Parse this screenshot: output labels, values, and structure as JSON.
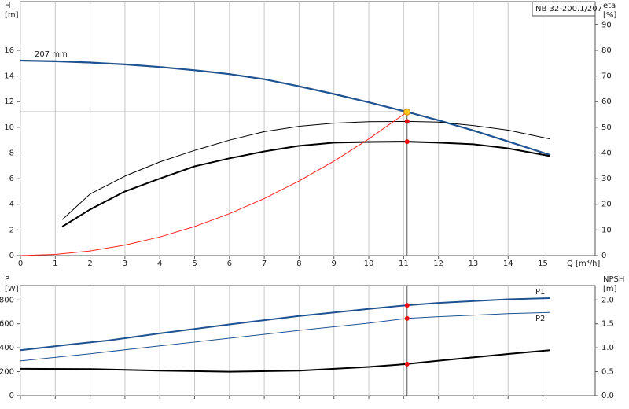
{
  "chart_data": [
    {
      "type": "line",
      "title": "NB 32-200.1/207",
      "xlabel": "Q [m³/h]",
      "ylabel": [
        "H",
        "[m]"
      ],
      "y2label": [
        "eta",
        "[%]"
      ],
      "xlim": [
        0,
        16.5
      ],
      "xticks": [
        0,
        1,
        2,
        3,
        4,
        5,
        6,
        7,
        8,
        9,
        10,
        11,
        12,
        13,
        14,
        15
      ],
      "ylim": [
        0,
        19.8
      ],
      "yticks": [
        0,
        2,
        4,
        6,
        8,
        10,
        12,
        14,
        16
      ],
      "y2lim": [
        0,
        99
      ],
      "y2ticks": [
        0,
        10,
        20,
        30,
        40,
        50,
        60,
        70,
        80,
        90
      ],
      "grid": "x",
      "xtick_labels": true,
      "duty_point": {
        "x": 11.1,
        "y": 11.2
      },
      "series": [
        {
          "name": "207 mm",
          "color": "#1f5290",
          "line_width": 2.2,
          "axis": "y",
          "x": [
            0,
            1,
            2,
            3,
            4,
            5,
            6,
            7,
            8,
            9,
            10,
            11.1,
            12,
            13,
            14,
            15.2
          ],
          "values": [
            15.2,
            15.15,
            15.05,
            14.9,
            14.7,
            14.45,
            14.15,
            13.75,
            13.2,
            12.6,
            11.95,
            11.2,
            10.55,
            9.75,
            8.9,
            7.85
          ]
        },
        {
          "color": "#000000",
          "line_width": 1,
          "axis": "y2",
          "x": [
            1.2,
            2,
            3,
            4,
            5,
            6,
            7,
            8,
            9,
            10,
            11.1,
            12,
            13,
            14,
            15.2
          ],
          "values": [
            14,
            24,
            31,
            36.5,
            41,
            45,
            48.3,
            50.4,
            51.6,
            52.2,
            52.3,
            52,
            50.7,
            48.9,
            45.5
          ]
        },
        {
          "color": "#000000",
          "line_width": 2,
          "axis": "y2",
          "x": [
            1.2,
            2,
            3,
            4,
            5,
            6,
            7,
            8,
            9,
            10,
            11.1,
            12,
            13,
            14,
            15.2
          ],
          "values": [
            11.3,
            18,
            25,
            30,
            34.8,
            37.9,
            40.6,
            42.8,
            44,
            44.3,
            44.4,
            44,
            43.4,
            41.8,
            38.8
          ]
        },
        {
          "color": "#ff2020",
          "line_width": 1,
          "axis": "y",
          "x": [
            0,
            1,
            2,
            3,
            4,
            5,
            6,
            7,
            8,
            9,
            10,
            11.1
          ],
          "values": [
            0,
            0.09,
            0.36,
            0.82,
            1.45,
            2.27,
            3.27,
            4.45,
            5.82,
            7.36,
            9.09,
            11.2
          ]
        }
      ]
    },
    {
      "type": "line",
      "ylabel": [
        "P",
        "[W]"
      ],
      "y2label": [
        "NPSH",
        "[m]"
      ],
      "xlim": [
        0,
        16.5
      ],
      "xticks": [
        0,
        1,
        2,
        3,
        4,
        5,
        6,
        7,
        8,
        9,
        10,
        11,
        12,
        13,
        14,
        15
      ],
      "ylim": [
        0,
        920
      ],
      "yticks": [
        0,
        200,
        400,
        600,
        800
      ],
      "y2lim": [
        0,
        2.3
      ],
      "y2ticks": [
        {
          "value": 0,
          "label": "0.0"
        },
        0.5,
        {
          "value": 1,
          "label": "1.0"
        },
        1.5,
        {
          "value": 2,
          "label": "2.0"
        }
      ],
      "grid": "x",
      "xtick_labels": false,
      "duty_point": {
        "x": 11.1
      },
      "series": [
        {
          "name": "P1",
          "color": "#1f5290",
          "line_width": 2,
          "axis": "y",
          "x": [
            0,
            1.5,
            2.5,
            4,
            6,
            8,
            10,
            11.1,
            12,
            14,
            15.2
          ],
          "values": [
            380,
            430,
            460,
            520,
            595,
            665,
            725,
            755,
            775,
            805,
            815
          ]
        },
        {
          "name": "P2",
          "color": "#1f5290",
          "line_width": 1,
          "axis": "y",
          "x": [
            0,
            2,
            4,
            6,
            8,
            10,
            11.1,
            12,
            14,
            15.2
          ],
          "values": [
            290,
            350,
            415,
            480,
            545,
            605,
            645,
            660,
            685,
            695
          ]
        },
        {
          "color": "#000000",
          "line_width": 2,
          "axis": "y2",
          "x": [
            0,
            2,
            4,
            6,
            8,
            10,
            11.1,
            12,
            14,
            15.2
          ],
          "values": [
            0.56,
            0.555,
            0.52,
            0.5,
            0.52,
            0.6,
            0.66,
            0.73,
            0.87,
            0.95
          ]
        }
      ]
    }
  ]
}
